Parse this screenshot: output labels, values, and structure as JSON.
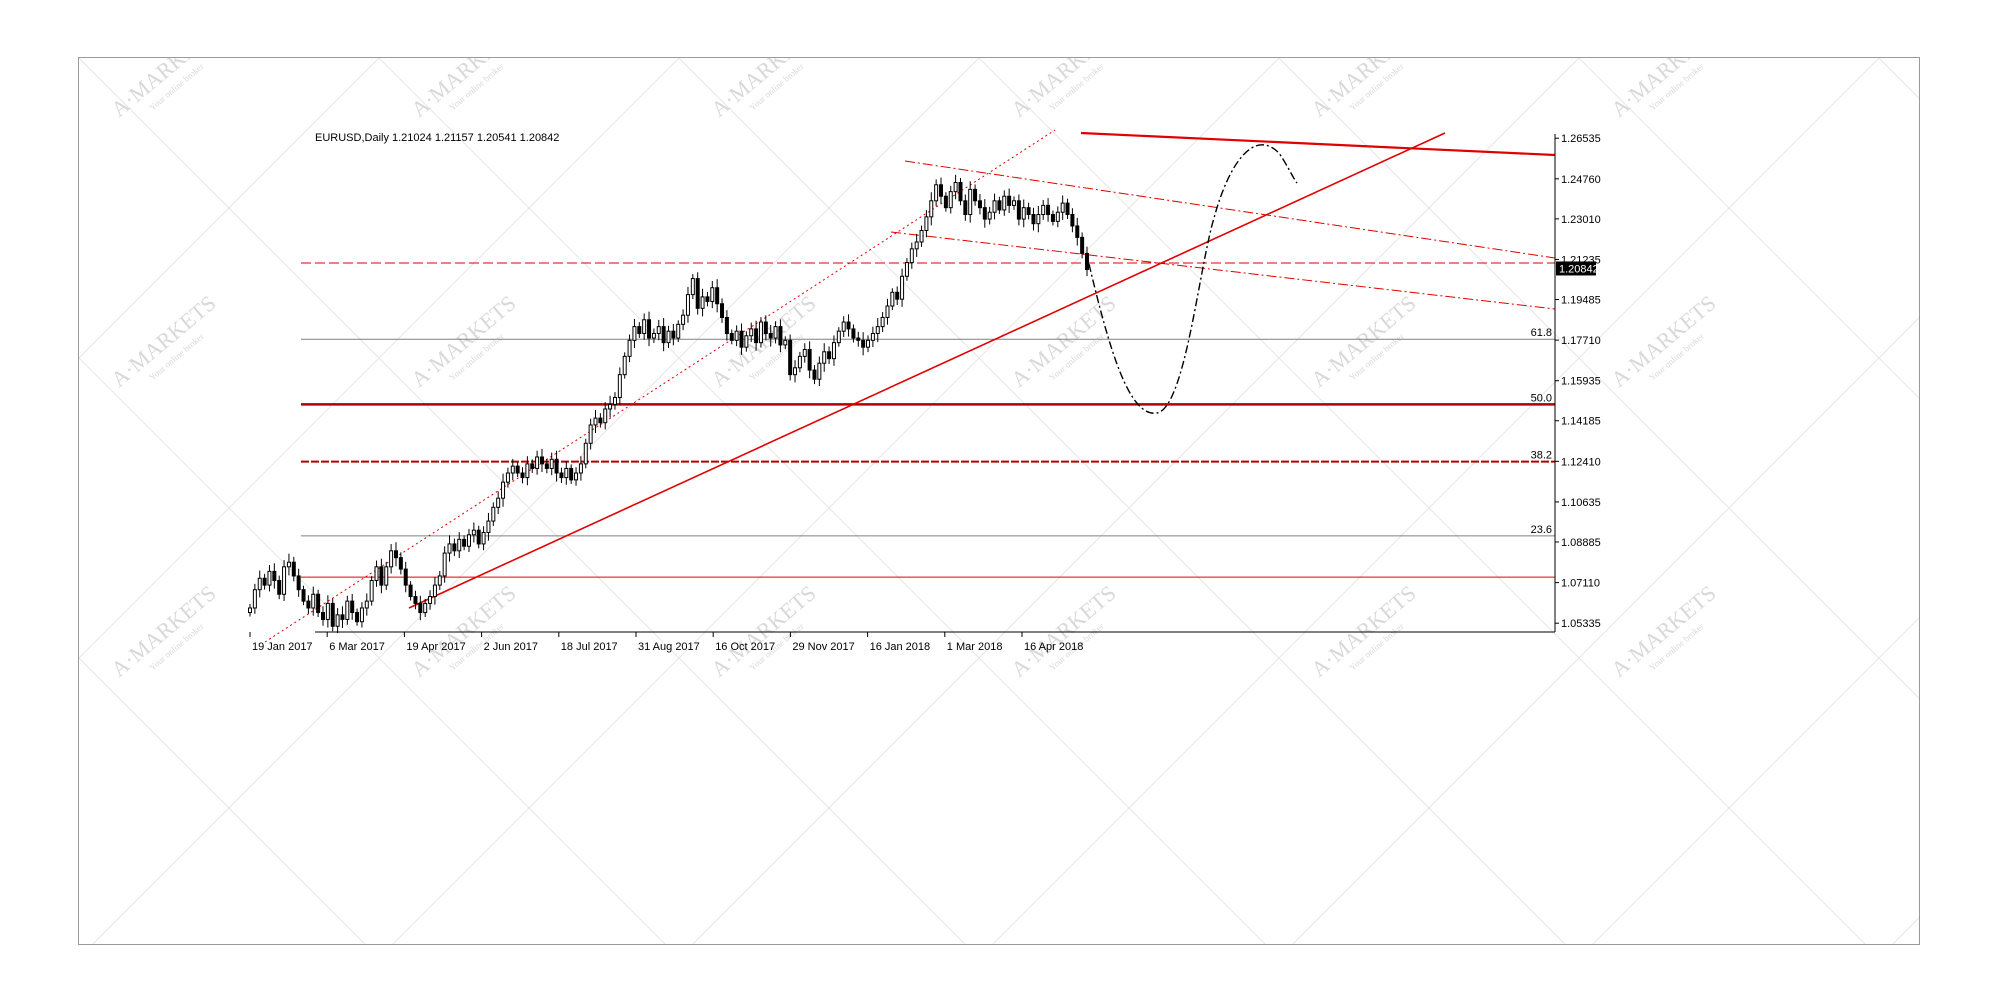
{
  "chart_data": {
    "type": "candlestick",
    "title": "EURUSD,Daily  1.21024 1.21157 1.20541 1.20842",
    "symbol": "EURUSD",
    "timeframe": "Daily",
    "ohlc_last": {
      "open": 1.21024,
      "high": 1.21157,
      "low": 1.20541,
      "close": 1.20842
    },
    "current_price_label": "1.20842",
    "ylim": [
      1.0495,
      1.2672
    ],
    "y_ticks": [
      "1.26535",
      "1.24760",
      "1.23010",
      "1.21235",
      "1.19485",
      "1.17710",
      "1.15935",
      "1.14185",
      "1.12410",
      "1.10635",
      "1.08885",
      "1.07110",
      "1.05335"
    ],
    "x_ticks": [
      "19 Jan 2017",
      "6 Mar 2017",
      "19 Apr 2017",
      "2 Jun 2017",
      "18 Jul 2017",
      "31 Aug 2017",
      "16 Oct 2017",
      "29 Nov 2017",
      "16 Jan 2018",
      "1 Mar 2018",
      "16 Apr 2018"
    ],
    "fibonacci_levels": [
      {
        "label": "61.8",
        "price": 1.1775
      },
      {
        "label": "50.0",
        "price": 1.149
      },
      {
        "label": "38.2",
        "price": 1.124
      },
      {
        "label": "23.6",
        "price": 1.0915
      }
    ],
    "closes": [
      1.06,
      1.068,
      1.073,
      1.07,
      1.076,
      1.072,
      1.066,
      1.078,
      1.08,
      1.074,
      1.068,
      1.063,
      1.06,
      1.066,
      1.058,
      1.055,
      1.062,
      1.052,
      1.057,
      1.055,
      1.063,
      1.058,
      1.054,
      1.06,
      1.063,
      1.072,
      1.078,
      1.07,
      1.078,
      1.085,
      1.082,
      1.077,
      1.07,
      1.065,
      1.062,
      1.058,
      1.062,
      1.065,
      1.07,
      1.074,
      1.084,
      1.088,
      1.085,
      1.09,
      1.087,
      1.092,
      1.094,
      1.088,
      1.093,
      1.098,
      1.104,
      1.108,
      1.115,
      1.119,
      1.122,
      1.119,
      1.117,
      1.123,
      1.121,
      1.126,
      1.123,
      1.121,
      1.125,
      1.119,
      1.117,
      1.121,
      1.116,
      1.119,
      1.123,
      1.132,
      1.14,
      1.143,
      1.141,
      1.147,
      1.149,
      1.152,
      1.162,
      1.17,
      1.177,
      1.183,
      1.18,
      1.186,
      1.178,
      1.18,
      1.183,
      1.176,
      1.181,
      1.178,
      1.184,
      1.188,
      1.197,
      1.204,
      1.191,
      1.196,
      1.194,
      1.2,
      1.193,
      1.187,
      1.18,
      1.177,
      1.181,
      1.174,
      1.179,
      1.182,
      1.176,
      1.185,
      1.18,
      1.178,
      1.183,
      1.175,
      1.177,
      1.162,
      1.165,
      1.17,
      1.173,
      1.164,
      1.16,
      1.167,
      1.172,
      1.169,
      1.176,
      1.181,
      1.185,
      1.182,
      1.178,
      1.177,
      1.174,
      1.177,
      1.18,
      1.183,
      1.187,
      1.192,
      1.198,
      1.195,
      1.205,
      1.211,
      1.217,
      1.22,
      1.225,
      1.231,
      1.238,
      1.245,
      1.24,
      1.235,
      1.242,
      1.246,
      1.238,
      1.232,
      1.243,
      1.238,
      1.235,
      1.23,
      1.233,
      1.238,
      1.234,
      1.24,
      1.236,
      1.238,
      1.23,
      1.235,
      1.232,
      1.228,
      1.232,
      1.236,
      1.232,
      1.229,
      1.233,
      1.237,
      1.232,
      1.227,
      1.222,
      1.215,
      1.208
    ]
  },
  "watermark": {
    "brand": "A·MARKETS",
    "tagline": "Your online broker"
  },
  "colors": {
    "trend": "#e00000",
    "fib_major": "#b00000",
    "fib_minor": "#808080",
    "candle": "#000000",
    "projection": "#000000"
  }
}
